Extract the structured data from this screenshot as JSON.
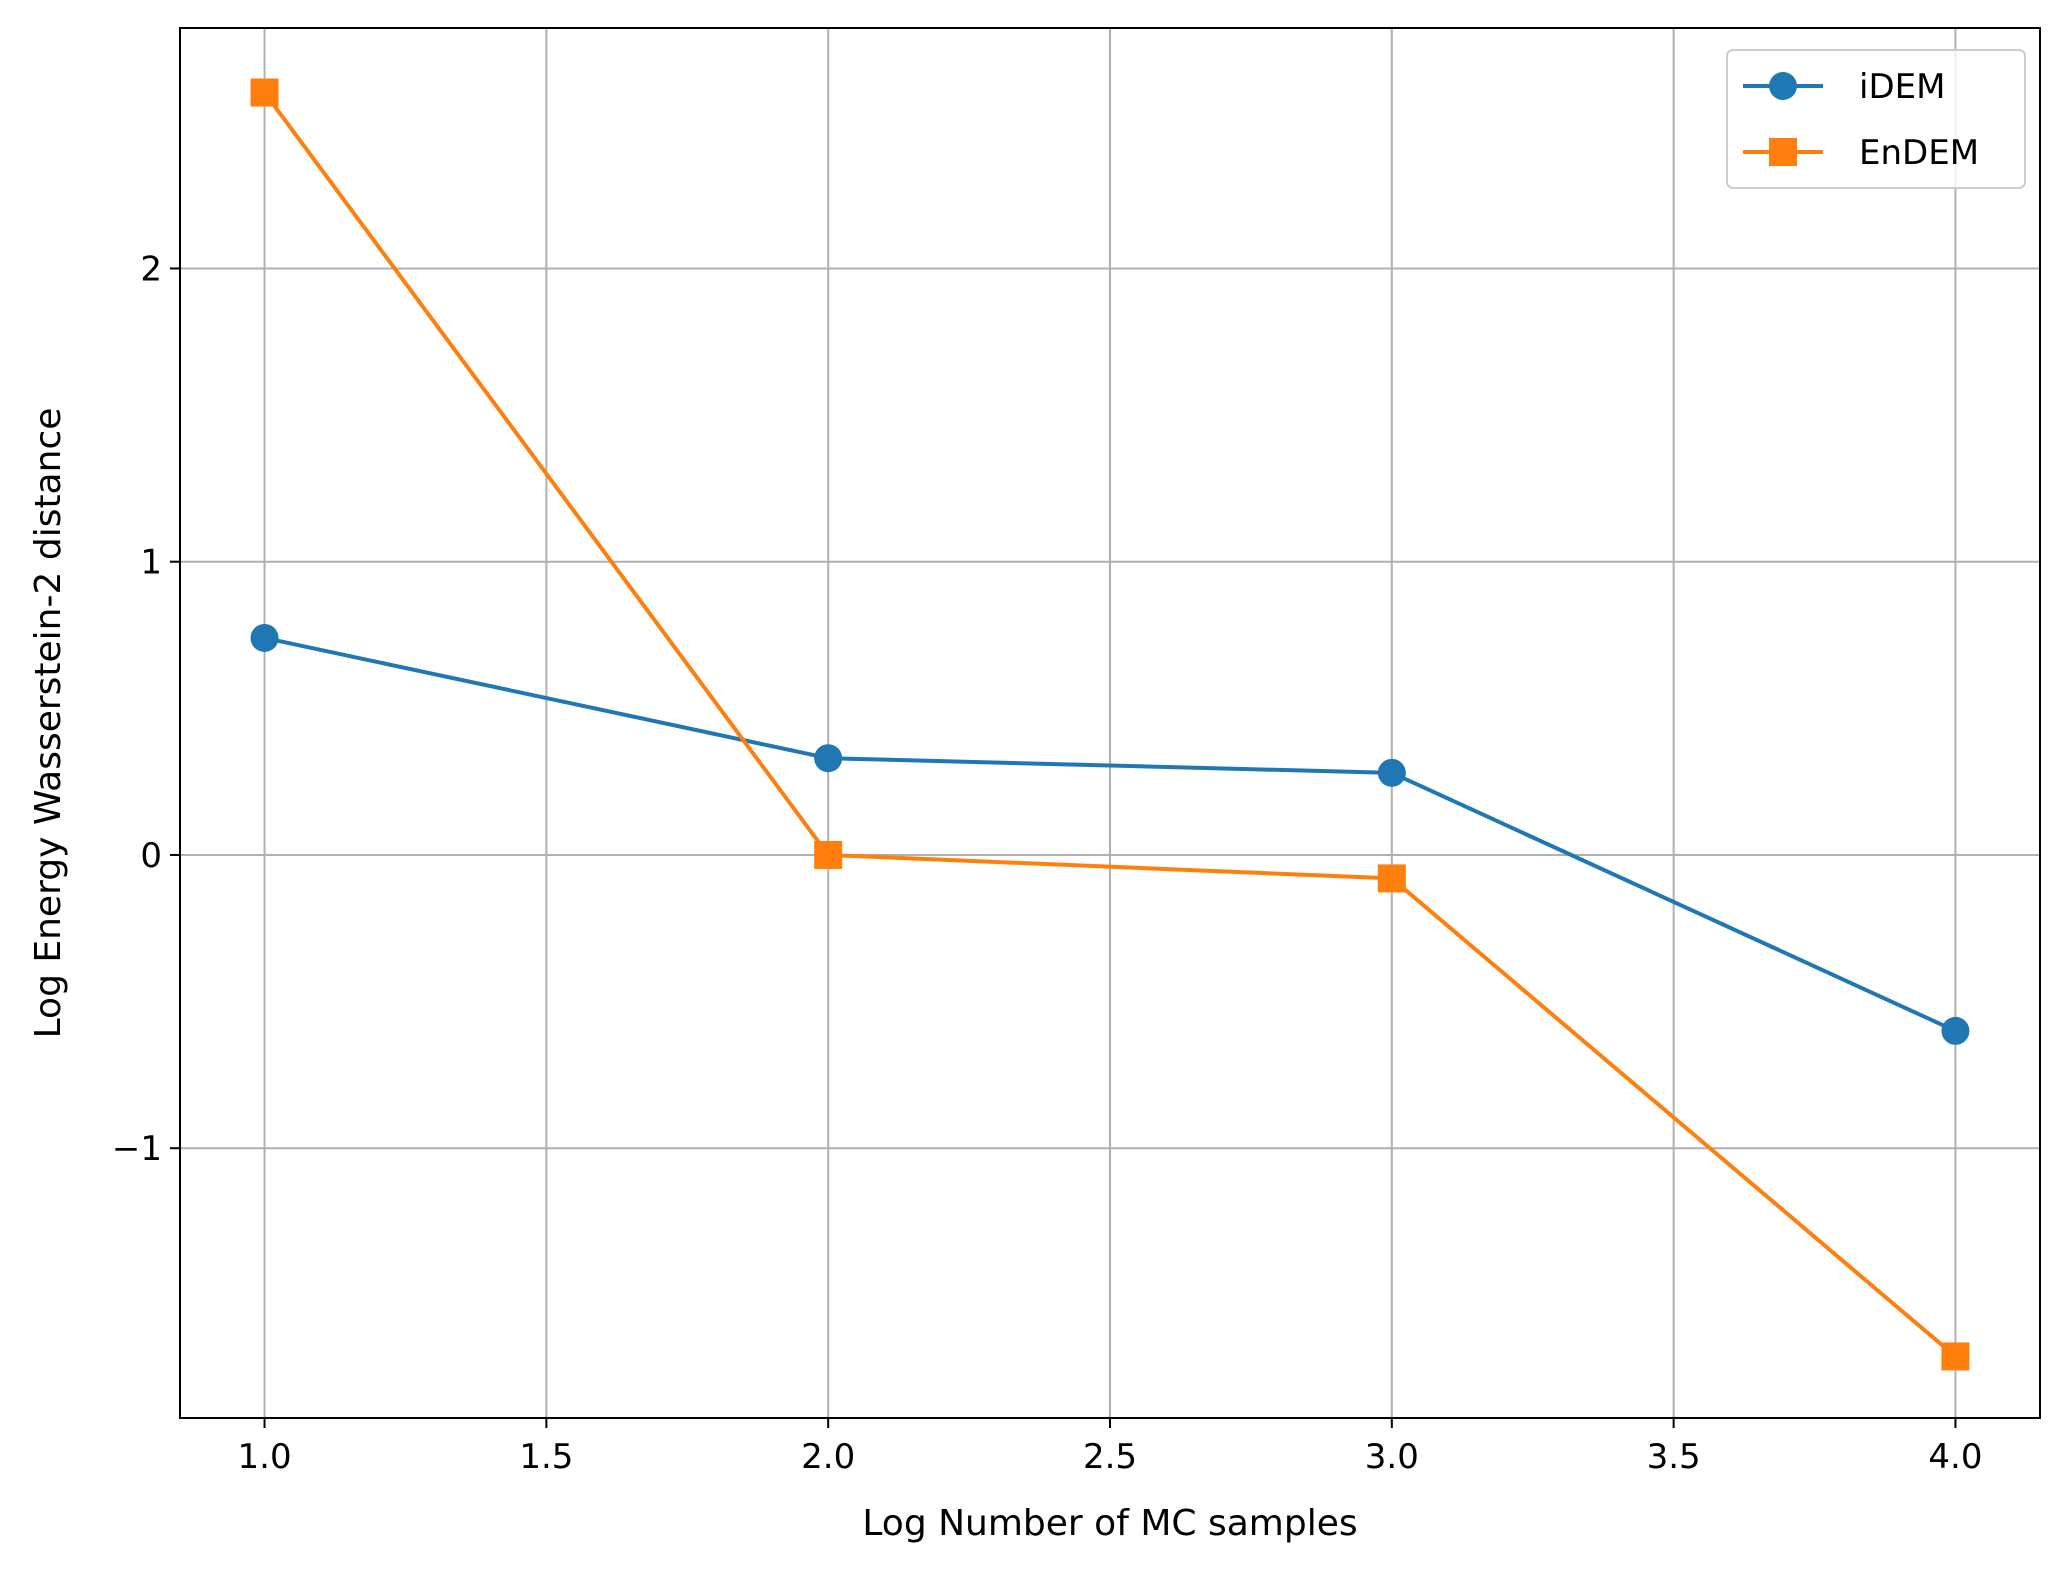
{
  "chart_data": {
    "type": "line",
    "title": "",
    "xlabel": "Log Number of MC samples",
    "ylabel": "Log Energy Wasserstein-2 distance",
    "xlim": [
      0.85,
      4.15
    ],
    "ylim": [
      -1.92,
      2.82
    ],
    "xticks": [
      1.0,
      1.5,
      2.0,
      2.5,
      3.0,
      3.5,
      4.0
    ],
    "xtick_labels": [
      "1.0",
      "1.5",
      "2.0",
      "2.5",
      "3.0",
      "3.5",
      "4.0"
    ],
    "yticks": [
      -1,
      0,
      1,
      2
    ],
    "ytick_labels": [
      "−1",
      "0",
      "1",
      "2"
    ],
    "grid": true,
    "legend_position": "top-right",
    "x": [
      1.0,
      2.0,
      3.0,
      4.0
    ],
    "series": [
      {
        "name": "iDEM",
        "values": [
          0.74,
          0.33,
          0.28,
          -0.6
        ],
        "color": "#1f77b4",
        "marker": "circle"
      },
      {
        "name": "EnDEM",
        "values": [
          2.6,
          0.0,
          -0.08,
          -1.71
        ],
        "color": "#ff7f0e",
        "marker": "square"
      }
    ]
  }
}
